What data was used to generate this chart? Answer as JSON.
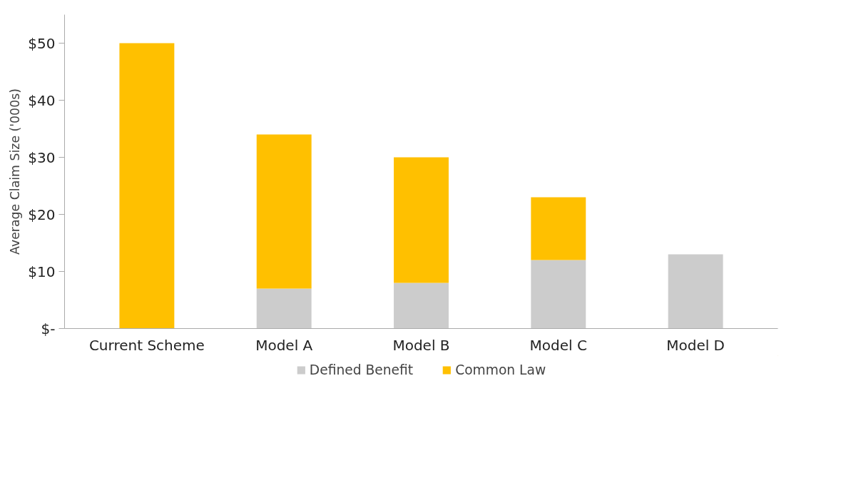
{
  "chart_data": {
    "type": "bar",
    "stacked": true,
    "ylabel": "Average Claim Size ('000s)",
    "categories": [
      "Current Scheme",
      "Model A",
      "Model B",
      "Model C",
      "Model D"
    ],
    "series": [
      {
        "name": "Defined Benefit",
        "color": "#cccccc",
        "values": [
          0,
          7,
          8,
          12,
          13
        ]
      },
      {
        "name": "Common Law",
        "color": "#ffc000",
        "values": [
          50,
          27,
          22,
          11,
          0
        ]
      }
    ],
    "ylim": [
      0,
      55
    ],
    "yticks": [
      {
        "value": 0,
        "label": "$-"
      },
      {
        "value": 10,
        "label": "$10"
      },
      {
        "value": 20,
        "label": "$20"
      },
      {
        "value": 30,
        "label": "$30"
      },
      {
        "value": 40,
        "label": "$40"
      },
      {
        "value": 50,
        "label": "$50"
      }
    ],
    "grid": false,
    "legend": "bottom"
  }
}
